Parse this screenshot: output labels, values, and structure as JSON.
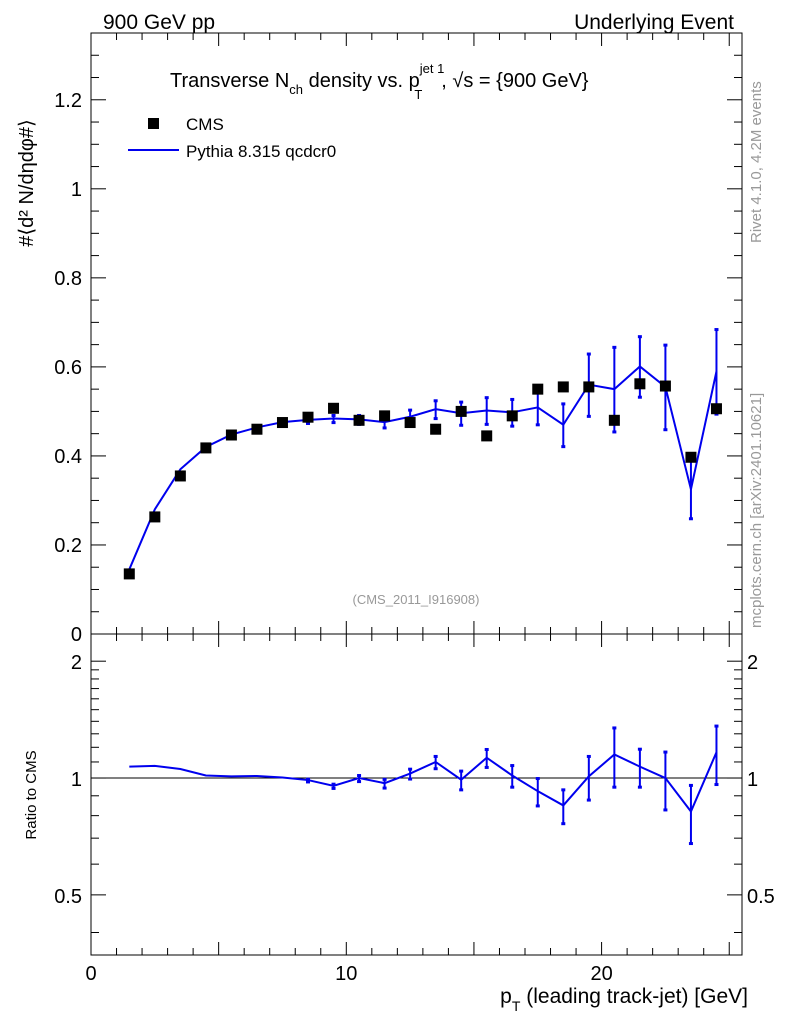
{
  "header": {
    "left": "900 GeV pp",
    "right": "Underlying Event"
  },
  "side_labels": {
    "rivet": "Rivet 4.1.0,  4.2M events",
    "mcplots": "mcplots.cern.ch [arXiv:2401.10621]"
  },
  "chart_data": {
    "type": "scatter",
    "title": {
      "part1": "Transverse N",
      "sub1": "ch",
      "part2": " density vs. p",
      "sup2": "jet 1",
      "sub2": "T",
      "part3": ", √s = {900 GeV}"
    },
    "ylabel": "#⟨d² N/dηdφ#⟩",
    "xlabel": {
      "main": "p",
      "sub": "T",
      "rest": " (leading track-jet) [GeV]"
    },
    "watermark": "(CMS_2011_I916908)",
    "xlim": [
      0,
      25.5
    ],
    "ylim": [
      0,
      1.35
    ],
    "yticks": [
      0,
      0.2,
      0.4,
      0.6,
      0.8,
      1,
      1.2
    ],
    "ytick_labels": [
      "0",
      "0.2",
      "0.4",
      "0.6",
      "0.8",
      "1",
      "1.2"
    ],
    "xticks": [
      0,
      10,
      20
    ],
    "xtick_labels": [
      "0",
      "10",
      "20"
    ],
    "legend": [
      {
        "name": "CMS",
        "marker": "square",
        "color": "#000000"
      },
      {
        "name": "Pythia 8.315 qcdcr0",
        "marker": "line",
        "color": "#0000ee"
      }
    ],
    "series": [
      {
        "name": "CMS",
        "x": [
          1.5,
          2.5,
          3.5,
          4.5,
          5.5,
          6.5,
          7.5,
          8.5,
          9.5,
          10.5,
          11.5,
          12.5,
          13.5,
          14.5,
          15.5,
          16.5,
          17.5,
          18.5,
          19.5,
          20.5,
          21.5,
          22.5,
          23.5,
          24.5
        ],
        "y": [
          0.135,
          0.263,
          0.355,
          0.418,
          0.447,
          0.46,
          0.475,
          0.487,
          0.507,
          0.48,
          0.49,
          0.475,
          0.46,
          0.5,
          0.445,
          0.49,
          0.55,
          0.555,
          0.555,
          0.48,
          0.562,
          0.557,
          0.397,
          0.506
        ]
      },
      {
        "name": "Pythia 8.315 qcdcr0",
        "x": [
          1.5,
          2.5,
          3.5,
          4.5,
          5.5,
          6.5,
          7.5,
          8.5,
          9.5,
          10.5,
          11.5,
          12.5,
          13.5,
          14.5,
          15.5,
          16.5,
          17.5,
          18.5,
          19.5,
          20.5,
          21.5,
          22.5,
          23.5,
          24.5
        ],
        "y": [
          0.145,
          0.28,
          0.37,
          0.42,
          0.448,
          0.464,
          0.476,
          0.481,
          0.484,
          0.482,
          0.476,
          0.488,
          0.505,
          0.496,
          0.502,
          0.498,
          0.509,
          0.47,
          0.56,
          0.55,
          0.601,
          0.555,
          0.325,
          0.59
        ],
        "yerr": [
          0.003,
          0.004,
          0.004,
          0.004,
          0.004,
          0.005,
          0.006,
          0.007,
          0.008,
          0.01,
          0.012,
          0.016,
          0.02,
          0.026,
          0.03,
          0.03,
          0.038,
          0.048,
          0.07,
          0.095,
          0.068,
          0.095,
          0.065,
          0.095
        ]
      }
    ],
    "ratio": {
      "ylabel": "Ratio to CMS",
      "ylim": [
        0.35,
        2.35
      ],
      "ytick_labels": [
        "0.5",
        "1",
        "2"
      ],
      "yticks": [
        0.5,
        1,
        2
      ],
      "x": [
        1.5,
        2.5,
        3.5,
        4.5,
        5.5,
        6.5,
        7.5,
        8.5,
        9.5,
        10.5,
        11.5,
        12.5,
        13.5,
        14.5,
        15.5,
        16.5,
        17.5,
        18.5,
        19.5,
        20.5,
        21.5,
        22.5,
        23.5,
        24.5
      ],
      "y": [
        1.07,
        1.075,
        1.055,
        1.015,
        1.01,
        1.012,
        1.003,
        0.988,
        0.955,
        1.0,
        0.97,
        1.027,
        1.1,
        0.99,
        1.128,
        1.015,
        0.925,
        0.85,
        1.01,
        1.15,
        1.07,
        1.0,
        0.82,
        1.165
      ],
      "yerr": [
        0.004,
        0.004,
        0.004,
        0.004,
        0.004,
        0.005,
        0.006,
        0.008,
        0.012,
        0.018,
        0.025,
        0.03,
        0.04,
        0.055,
        0.06,
        0.065,
        0.075,
        0.085,
        0.13,
        0.2,
        0.12,
        0.17,
        0.14,
        0.2
      ]
    }
  }
}
